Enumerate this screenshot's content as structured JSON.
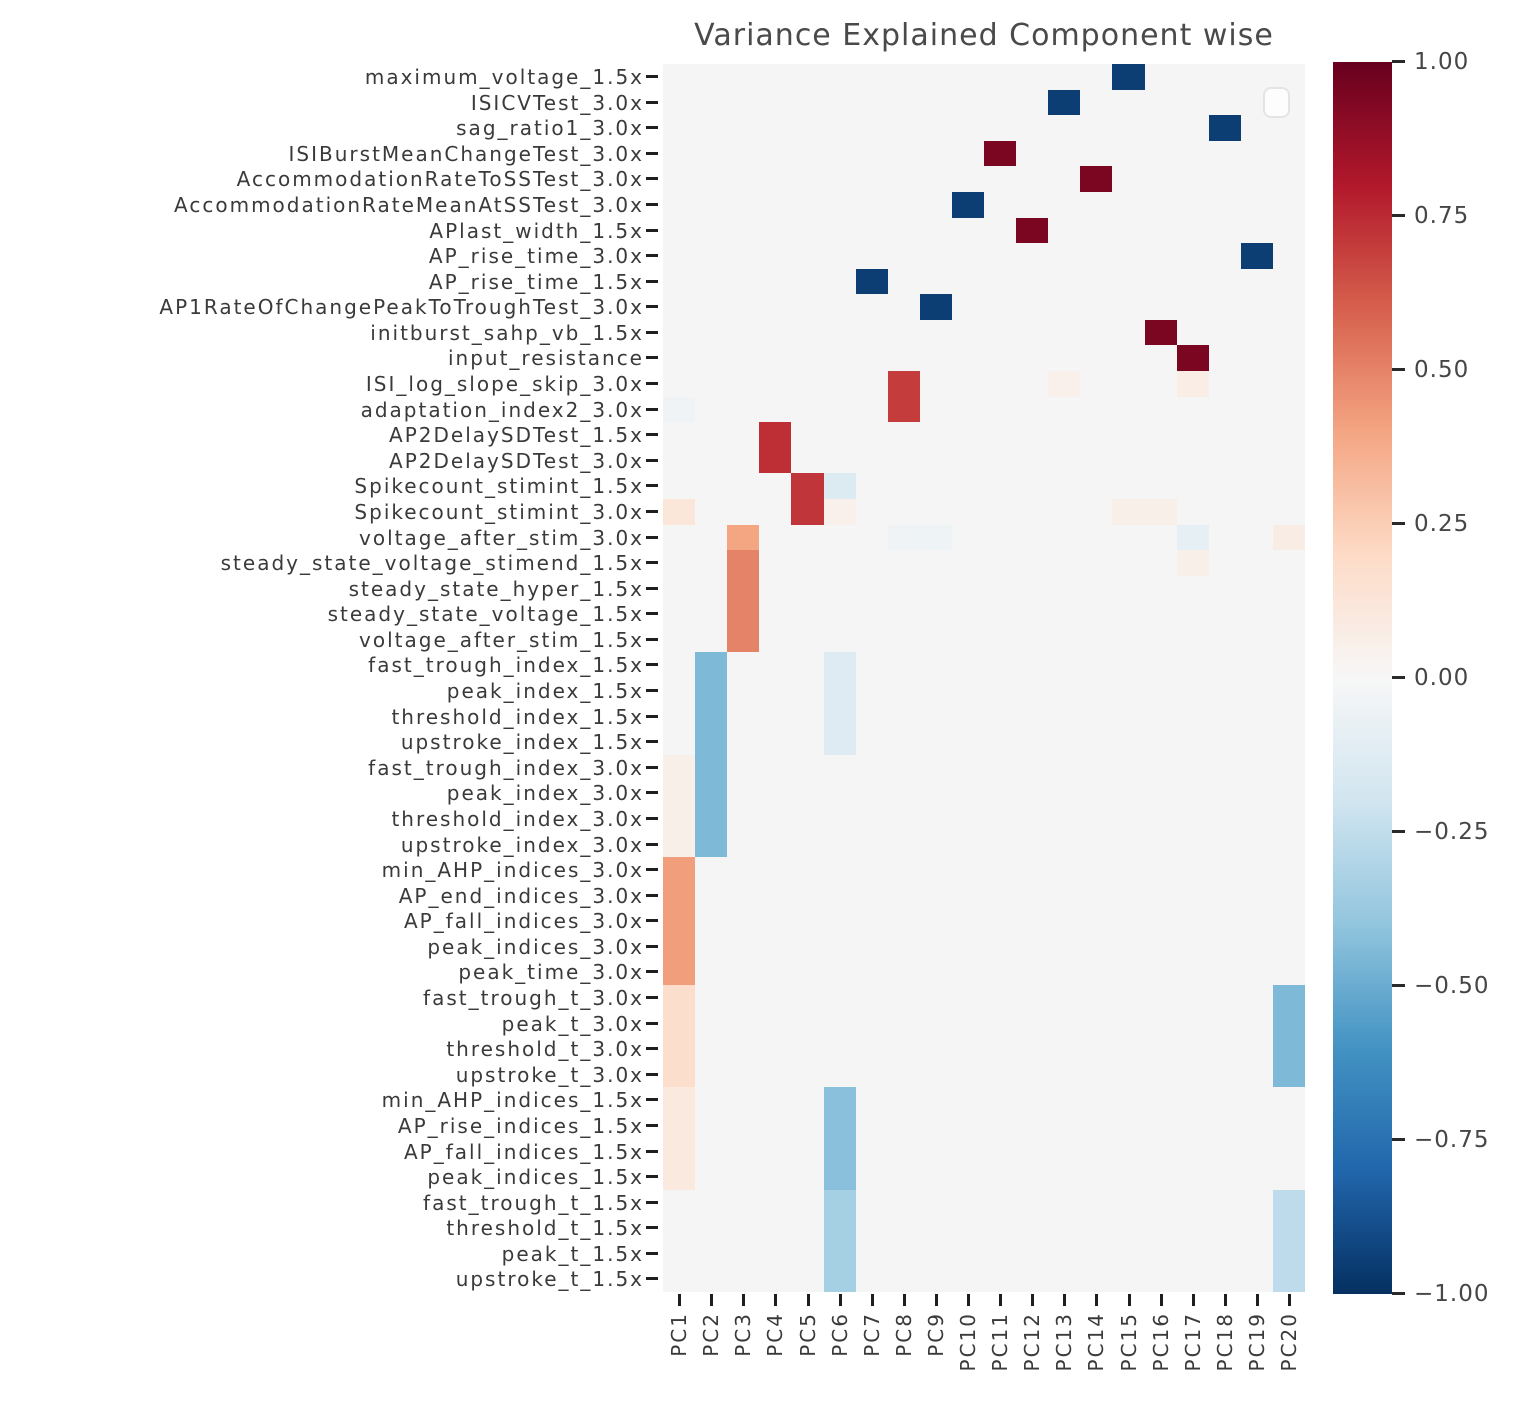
{
  "chart_data": {
    "type": "heatmap",
    "title": "Variance Explained Component wise",
    "colormap": "RdBu_r",
    "vmin": -1.0,
    "vmax": 1.0,
    "grid": false,
    "legend_position": "top-right-empty-box",
    "rows": [
      "maximum_voltage_1.5x",
      "ISICVTest_3.0x",
      "sag_ratio1_3.0x",
      "ISIBurstMeanChangeTest_3.0x",
      "AccommodationRateToSSTest_3.0x",
      "AccommodationRateMeanAtSSTest_3.0x",
      "APlast_width_1.5x",
      "AP_rise_time_3.0x",
      "AP_rise_time_1.5x",
      "AP1RateOfChangePeakToTroughTest_3.0x",
      "initburst_sahp_vb_1.5x",
      "input_resistance",
      "ISI_log_slope_skip_3.0x",
      "adaptation_index2_3.0x",
      "AP2DelaySDTest_1.5x",
      "AP2DelaySDTest_3.0x",
      "Spikecount_stimint_1.5x",
      "Spikecount_stimint_3.0x",
      "voltage_after_stim_3.0x",
      "steady_state_voltage_stimend_1.5x",
      "steady_state_hyper_1.5x",
      "steady_state_voltage_1.5x",
      "voltage_after_stim_1.5x",
      "fast_trough_index_1.5x",
      "peak_index_1.5x",
      "threshold_index_1.5x",
      "upstroke_index_1.5x",
      "fast_trough_index_3.0x",
      "peak_index_3.0x",
      "threshold_index_3.0x",
      "upstroke_index_3.0x",
      "min_AHP_indices_3.0x",
      "AP_end_indices_3.0x",
      "AP_fall_indices_3.0x",
      "peak_indices_3.0x",
      "peak_time_3.0x",
      "fast_trough_t_3.0x",
      "peak_t_3.0x",
      "threshold_t_3.0x",
      "upstroke_t_3.0x",
      "min_AHP_indices_1.5x",
      "AP_rise_indices_1.5x",
      "AP_fall_indices_1.5x",
      "peak_indices_1.5x",
      "fast_trough_t_1.5x",
      "threshold_t_1.5x",
      "peak_t_1.5x",
      "upstroke_t_1.5x"
    ],
    "columns": [
      "PC1",
      "PC2",
      "PC3",
      "PC4",
      "PC5",
      "PC6",
      "PC7",
      "PC8",
      "PC9",
      "PC10",
      "PC11",
      "PC12",
      "PC13",
      "PC14",
      "PC15",
      "PC16",
      "PC17",
      "PC18",
      "PC19",
      "PC20"
    ],
    "colorbar_tick_labels": [
      "1.00",
      "0.75",
      "0.50",
      "0.25",
      "0.00",
      "−0.25",
      "−0.50",
      "−0.75",
      "−1.00"
    ],
    "colormap_stops": [
      [
        -1.0,
        "#053061"
      ],
      [
        -0.8,
        "#2166ac"
      ],
      [
        -0.6,
        "#4393c3"
      ],
      [
        -0.4,
        "#92c5de"
      ],
      [
        -0.2,
        "#d1e5f0"
      ],
      [
        0.0,
        "#f7f7f7"
      ],
      [
        0.2,
        "#fddbc7"
      ],
      [
        0.4,
        "#f4a582"
      ],
      [
        0.6,
        "#d6604d"
      ],
      [
        0.8,
        "#b2182b"
      ],
      [
        1.0,
        "#67001f"
      ]
    ],
    "background_value": 0.0,
    "cells": [
      [
        0,
        14,
        -0.95
      ],
      [
        1,
        12,
        -0.95
      ],
      [
        2,
        17,
        -0.95
      ],
      [
        3,
        10,
        0.95
      ],
      [
        4,
        13,
        0.95
      ],
      [
        5,
        9,
        -0.95
      ],
      [
        6,
        11,
        0.95
      ],
      [
        7,
        18,
        -0.95
      ],
      [
        8,
        6,
        -0.95
      ],
      [
        9,
        8,
        -0.95
      ],
      [
        10,
        15,
        0.95
      ],
      [
        11,
        16,
        0.95
      ],
      [
        12,
        7,
        0.7
      ],
      [
        12,
        12,
        0.05
      ],
      [
        12,
        16,
        0.07
      ],
      [
        13,
        7,
        0.7
      ],
      [
        13,
        0,
        -0.04
      ],
      [
        14,
        3,
        0.74
      ],
      [
        15,
        3,
        0.74
      ],
      [
        16,
        4,
        0.72
      ],
      [
        16,
        5,
        -0.14
      ],
      [
        17,
        4,
        0.72
      ],
      [
        17,
        0,
        0.12
      ],
      [
        17,
        5,
        0.05
      ],
      [
        17,
        14,
        0.06
      ],
      [
        17,
        15,
        0.06
      ],
      [
        18,
        2,
        0.4
      ],
      [
        18,
        7,
        -0.04
      ],
      [
        18,
        8,
        -0.05
      ],
      [
        18,
        16,
        -0.09
      ],
      [
        18,
        19,
        0.08
      ],
      [
        19,
        2,
        0.5
      ],
      [
        19,
        16,
        0.06
      ],
      [
        20,
        2,
        0.5
      ],
      [
        21,
        2,
        0.5
      ],
      [
        22,
        2,
        0.5
      ],
      [
        23,
        1,
        -0.45
      ],
      [
        23,
        5,
        -0.13
      ],
      [
        24,
        1,
        -0.45
      ],
      [
        24,
        5,
        -0.13
      ],
      [
        25,
        1,
        -0.45
      ],
      [
        25,
        5,
        -0.13
      ],
      [
        26,
        1,
        -0.45
      ],
      [
        26,
        5,
        -0.13
      ],
      [
        27,
        1,
        -0.45
      ],
      [
        27,
        0,
        0.06
      ],
      [
        28,
        1,
        -0.45
      ],
      [
        28,
        0,
        0.06
      ],
      [
        29,
        1,
        -0.45
      ],
      [
        29,
        0,
        0.06
      ],
      [
        30,
        1,
        -0.45
      ],
      [
        30,
        0,
        0.06
      ],
      [
        31,
        0,
        0.42
      ],
      [
        32,
        0,
        0.42
      ],
      [
        33,
        0,
        0.42
      ],
      [
        34,
        0,
        0.42
      ],
      [
        35,
        0,
        0.42
      ],
      [
        36,
        0,
        0.18
      ],
      [
        36,
        19,
        -0.45
      ],
      [
        37,
        0,
        0.18
      ],
      [
        37,
        19,
        -0.45
      ],
      [
        38,
        0,
        0.18
      ],
      [
        38,
        19,
        -0.45
      ],
      [
        39,
        0,
        0.18
      ],
      [
        39,
        19,
        -0.45
      ],
      [
        40,
        0,
        0.1
      ],
      [
        40,
        5,
        -0.42
      ],
      [
        41,
        0,
        0.1
      ],
      [
        41,
        5,
        -0.42
      ],
      [
        42,
        0,
        0.1
      ],
      [
        42,
        5,
        -0.42
      ],
      [
        43,
        0,
        0.1
      ],
      [
        43,
        5,
        -0.42
      ],
      [
        44,
        5,
        -0.34
      ],
      [
        44,
        19,
        -0.26
      ],
      [
        45,
        5,
        -0.34
      ],
      [
        45,
        19,
        -0.26
      ],
      [
        46,
        5,
        -0.34
      ],
      [
        46,
        19,
        -0.26
      ],
      [
        47,
        5,
        -0.34
      ],
      [
        47,
        19,
        -0.26
      ]
    ]
  }
}
